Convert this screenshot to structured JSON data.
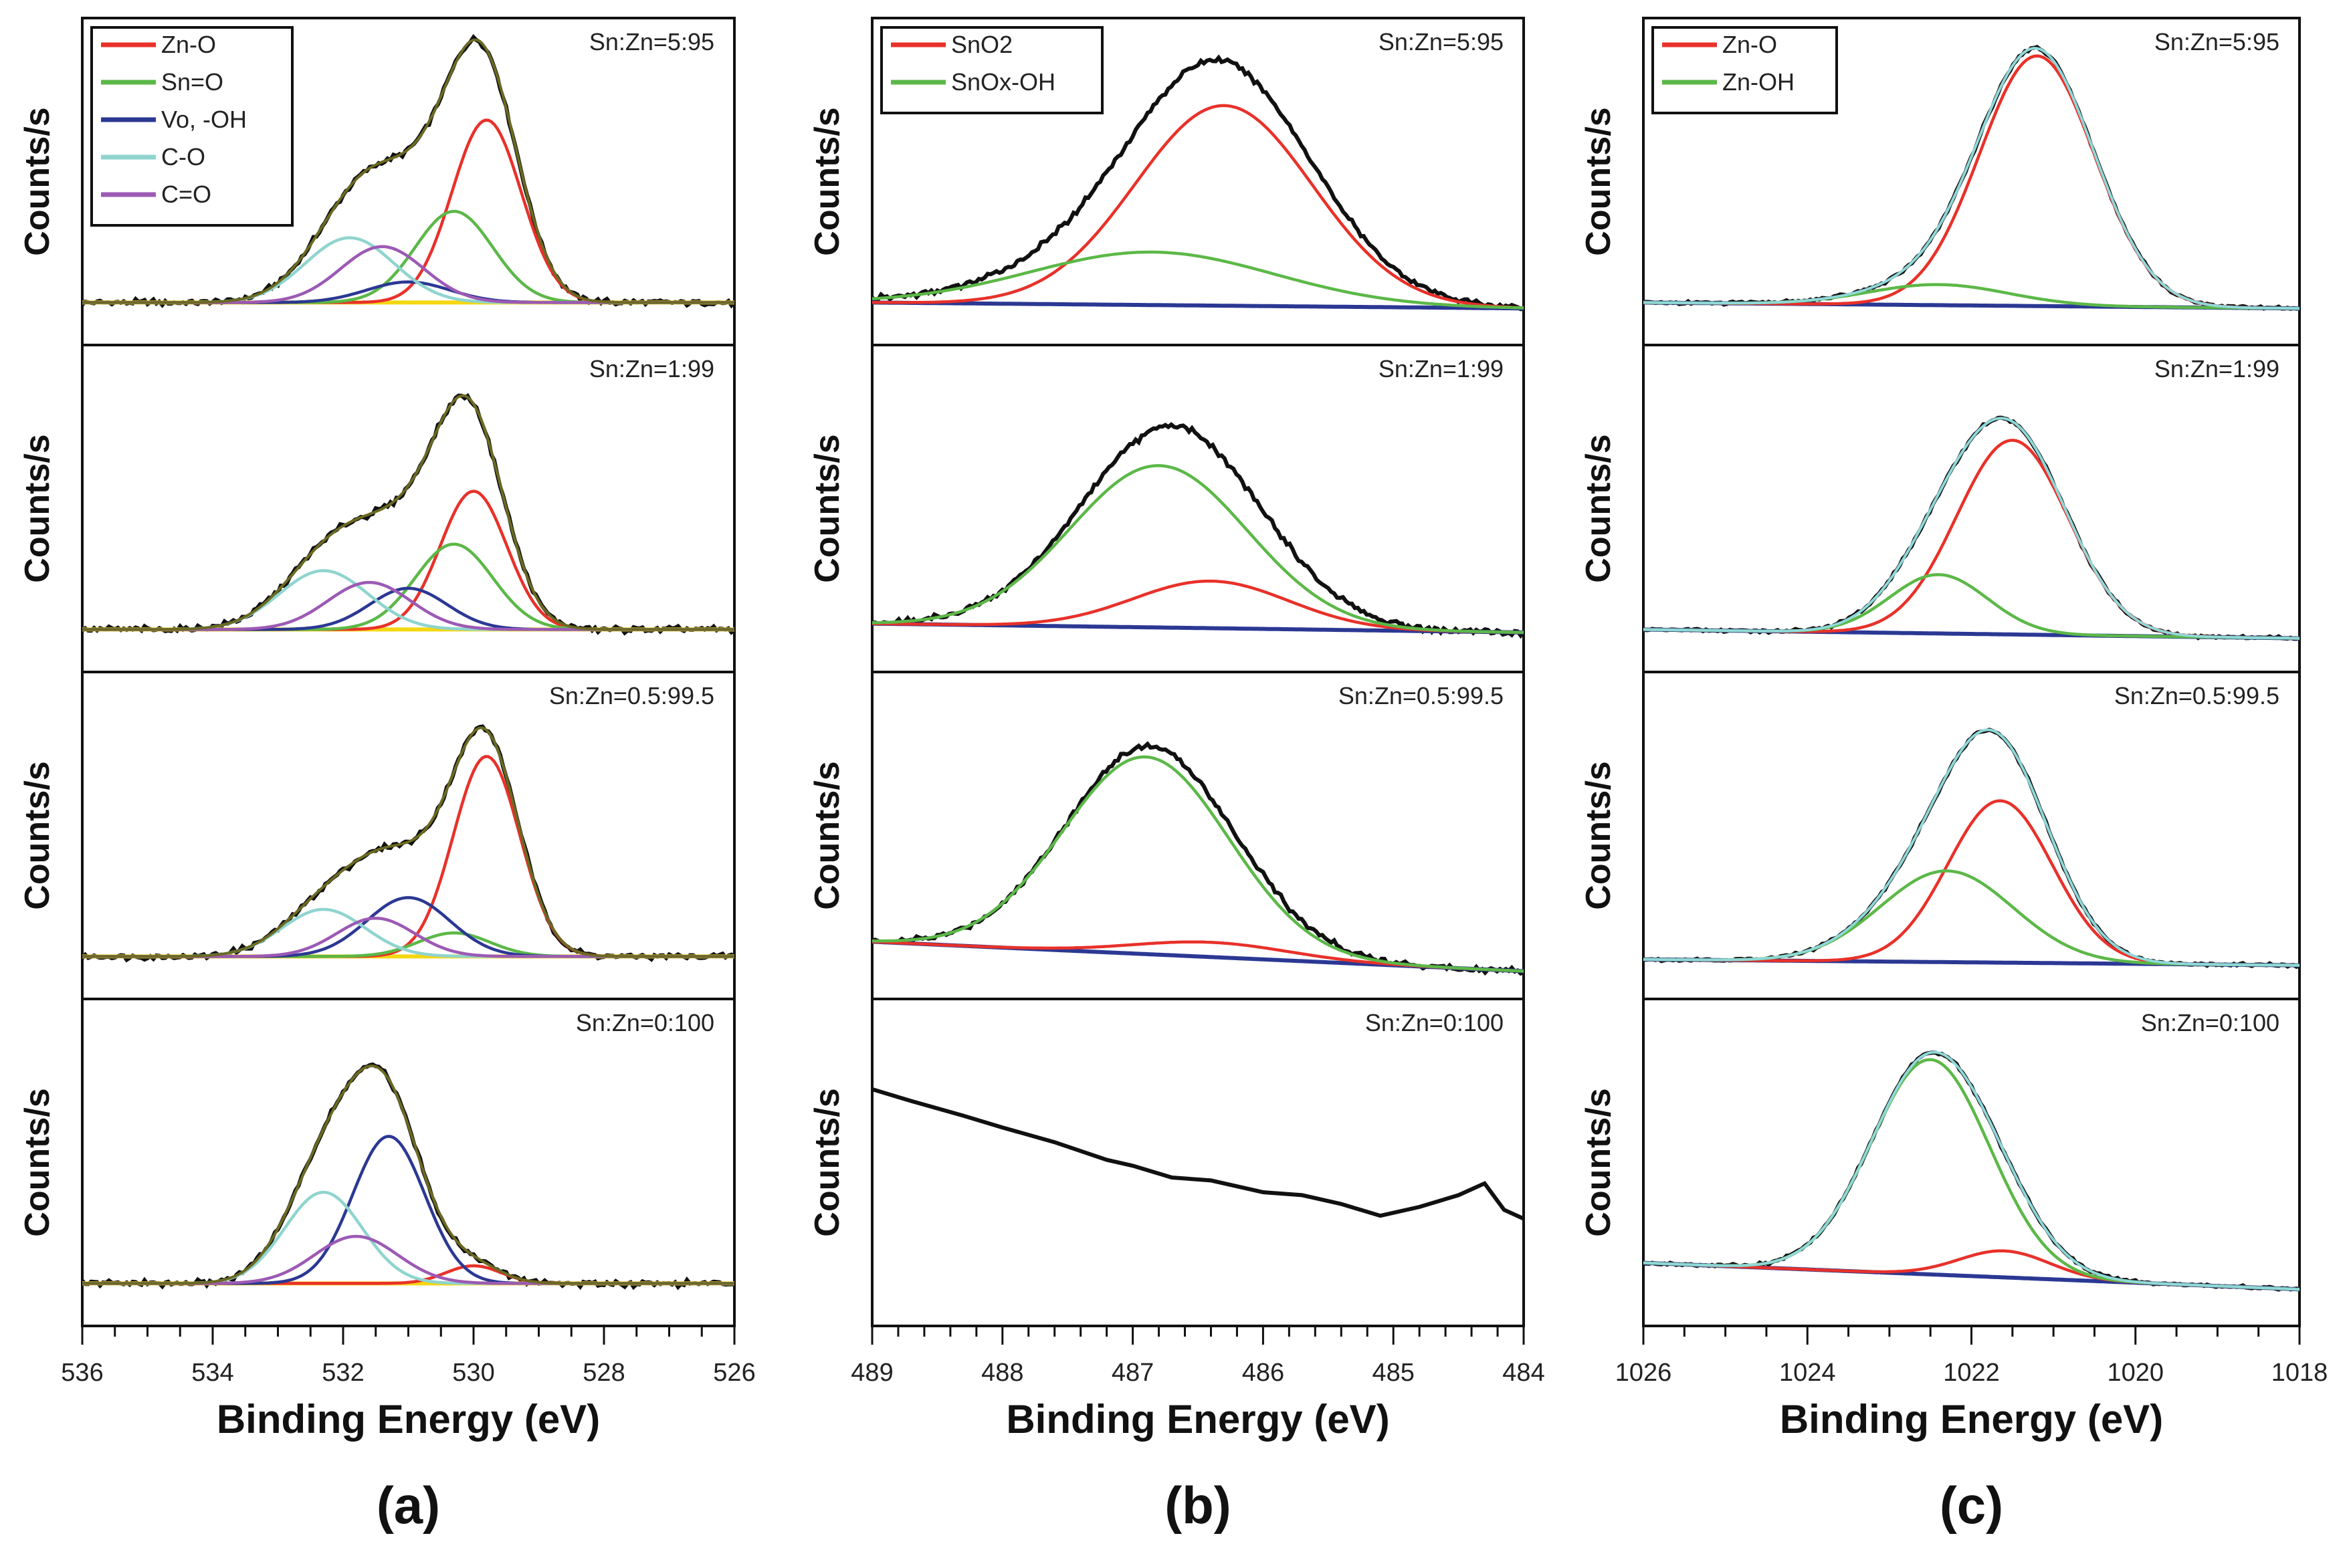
{
  "chart_data": [
    {
      "panel": "(a)",
      "type": "line",
      "xlabel": "Binding Energy (eV)",
      "ylabel": "Counts/s",
      "xlim": [
        536,
        526
      ],
      "xticks": [
        536,
        534,
        532,
        530,
        528,
        526
      ],
      "minor_tick_step": 0.5,
      "legend": [
        {
          "name": "Zn-O",
          "color": "#e8312a"
        },
        {
          "name": "Sn=O",
          "color": "#5cb848"
        },
        {
          "name": "Vo, -OH",
          "color": "#2b3893"
        },
        {
          "name": "C-O",
          "color": "#8fd4cf"
        },
        {
          "name": "C=O",
          "color": "#9c5ab4"
        }
      ],
      "baseline_color": "#f4d712",
      "data_color": "#111111",
      "fit_color": "#6b6a22",
      "rows": [
        {
          "label": "Sn:Zn=5:95",
          "baseline": [
            0.1,
            0.1
          ],
          "components": [
            {
              "name": "Zn-O",
              "center": 529.8,
              "amp": 0.62,
              "fwhm": 1.25
            },
            {
              "name": "Sn=O",
              "center": 530.3,
              "amp": 0.31,
              "fwhm": 1.4
            },
            {
              "name": "Vo, -OH",
              "center": 531.0,
              "amp": 0.07,
              "fwhm": 1.5
            },
            {
              "name": "C-O",
              "center": 531.9,
              "amp": 0.22,
              "fwhm": 1.6
            },
            {
              "name": "C=O",
              "center": 531.4,
              "amp": 0.19,
              "fwhm": 1.5
            }
          ]
        },
        {
          "label": "Sn:Zn=1:99",
          "baseline": [
            0.1,
            0.1
          ],
          "components": [
            {
              "name": "Zn-O",
              "center": 530.0,
              "amp": 0.47,
              "fwhm": 1.2
            },
            {
              "name": "Sn=O",
              "center": 530.3,
              "amp": 0.29,
              "fwhm": 1.4
            },
            {
              "name": "Vo, -OH",
              "center": 531.0,
              "amp": 0.14,
              "fwhm": 1.4
            },
            {
              "name": "C-O",
              "center": 532.3,
              "amp": 0.2,
              "fwhm": 1.6
            },
            {
              "name": "C=O",
              "center": 531.6,
              "amp": 0.16,
              "fwhm": 1.5
            }
          ]
        },
        {
          "label": "Sn:Zn=0.5:99.5",
          "baseline": [
            0.1,
            0.1
          ],
          "components": [
            {
              "name": "Zn-O",
              "center": 529.8,
              "amp": 0.68,
              "fwhm": 1.2
            },
            {
              "name": "Sn=O",
              "center": 530.3,
              "amp": 0.08,
              "fwhm": 1.3
            },
            {
              "name": "Vo, -OH",
              "center": 531.0,
              "amp": 0.2,
              "fwhm": 1.5
            },
            {
              "name": "C-O",
              "center": 532.3,
              "amp": 0.16,
              "fwhm": 1.5
            },
            {
              "name": "C=O",
              "center": 531.5,
              "amp": 0.13,
              "fwhm": 1.4
            }
          ]
        },
        {
          "label": "Sn:Zn=0:100",
          "baseline": [
            0.1,
            0.1
          ],
          "components": [
            {
              "name": "Zn-O",
              "center": 530.0,
              "amp": 0.06,
              "fwhm": 1.0
            },
            {
              "name": "Vo, -OH",
              "center": 531.3,
              "amp": 0.5,
              "fwhm": 1.3
            },
            {
              "name": "C-O",
              "center": 532.3,
              "amp": 0.31,
              "fwhm": 1.4
            },
            {
              "name": "C=O",
              "center": 531.8,
              "amp": 0.16,
              "fwhm": 1.5
            }
          ]
        }
      ]
    },
    {
      "panel": "(b)",
      "type": "line",
      "xlabel": "Binding Energy (eV)",
      "ylabel": "Counts/s",
      "xlim": [
        489,
        484
      ],
      "xticks": [
        489,
        488,
        487,
        486,
        485,
        484
      ],
      "minor_tick_step": 0.2,
      "legend": [
        {
          "name": "SnO2",
          "color": "#e8312a"
        },
        {
          "name": "SnOx-OH",
          "color": "#5cb848"
        }
      ],
      "baseline_color": "#2b3893",
      "data_color": "#111111",
      "rows": [
        {
          "label": "Sn:Zn=5:95",
          "baseline": [
            0.1,
            0.08
          ],
          "components": [
            {
              "name": "SnO2",
              "center": 486.3,
              "amp": 0.68,
              "fwhm": 1.6
            },
            {
              "name": "SnOx-OH",
              "center": 486.85,
              "amp": 0.18,
              "fwhm": 2.2
            }
          ]
        },
        {
          "label": "Sn:Zn=1:99",
          "baseline": [
            0.12,
            0.09
          ],
          "components": [
            {
              "name": "SnO2",
              "center": 486.4,
              "amp": 0.16,
              "fwhm": 1.4
            },
            {
              "name": "SnOx-OH",
              "center": 486.8,
              "amp": 0.55,
              "fwhm": 1.6
            }
          ]
        },
        {
          "label": "Sn:Zn=0.5:99.5",
          "baseline": [
            0.15,
            0.05
          ],
          "components": [
            {
              "name": "SnO2",
              "center": 486.4,
              "amp": 0.05,
              "fwhm": 1.4
            },
            {
              "name": "SnOx-OH",
              "center": 486.9,
              "amp": 0.67,
              "fwhm": 1.5
            }
          ]
        },
        {
          "label": "Sn:Zn=0:100",
          "data": [
            [
              489,
              0.76
            ],
            [
              488.7,
              0.72
            ],
            [
              488.3,
              0.67
            ],
            [
              488,
              0.63
            ],
            [
              487.6,
              0.58
            ],
            [
              487.2,
              0.52
            ],
            [
              487,
              0.5
            ],
            [
              486.7,
              0.46
            ],
            [
              486.4,
              0.45
            ],
            [
              486,
              0.41
            ],
            [
              485.7,
              0.4
            ],
            [
              485.4,
              0.37
            ],
            [
              485.1,
              0.33
            ],
            [
              484.8,
              0.36
            ],
            [
              484.5,
              0.4
            ],
            [
              484.3,
              0.44
            ],
            [
              484.15,
              0.35
            ],
            [
              484,
              0.32
            ]
          ]
        }
      ]
    },
    {
      "panel": "(c)",
      "type": "line",
      "xlabel": "Binding Energy (eV)",
      "ylabel": "Counts/s",
      "xlim": [
        1026,
        1018
      ],
      "xticks": [
        1026,
        1024,
        1022,
        1020,
        1018
      ],
      "minor_tick_step": 0.5,
      "legend": [
        {
          "name": "Zn-O",
          "color": "#e8312a"
        },
        {
          "name": "Zn-OH",
          "color": "#5cb848"
        }
      ],
      "baseline_color": "#2b3893",
      "data_color": "#111111",
      "fit_color": "#8fd8d8",
      "rows": [
        {
          "label": "Sn:Zn=5:95",
          "baseline": [
            0.1,
            0.08
          ],
          "components": [
            {
              "name": "Zn-O",
              "center": 1021.2,
              "amp": 0.85,
              "fwhm": 1.65
            },
            {
              "name": "Zn-OH",
              "center": 1022.4,
              "amp": 0.07,
              "fwhm": 2.0
            }
          ]
        },
        {
          "label": "Sn:Zn=1:99",
          "baseline": [
            0.1,
            0.07
          ],
          "components": [
            {
              "name": "Zn-O",
              "center": 1021.5,
              "amp": 0.66,
              "fwhm": 1.6
            },
            {
              "name": "Zn-OH",
              "center": 1022.4,
              "amp": 0.2,
              "fwhm": 1.4
            }
          ]
        },
        {
          "label": "Sn:Zn=0.5:99.5",
          "baseline": [
            0.09,
            0.07
          ],
          "components": [
            {
              "name": "Zn-O",
              "center": 1021.65,
              "amp": 0.55,
              "fwhm": 1.5
            },
            {
              "name": "Zn-OH",
              "center": 1022.3,
              "amp": 0.31,
              "fwhm": 1.9
            }
          ]
        },
        {
          "label": "Sn:Zn=0:100",
          "baseline": [
            0.17,
            0.08
          ],
          "components": [
            {
              "name": "Zn-O",
              "center": 1021.6,
              "amp": 0.09,
              "fwhm": 1.3
            },
            {
              "name": "Zn-OH",
              "center": 1022.5,
              "amp": 0.73,
              "fwhm": 1.7
            }
          ]
        }
      ]
    }
  ]
}
